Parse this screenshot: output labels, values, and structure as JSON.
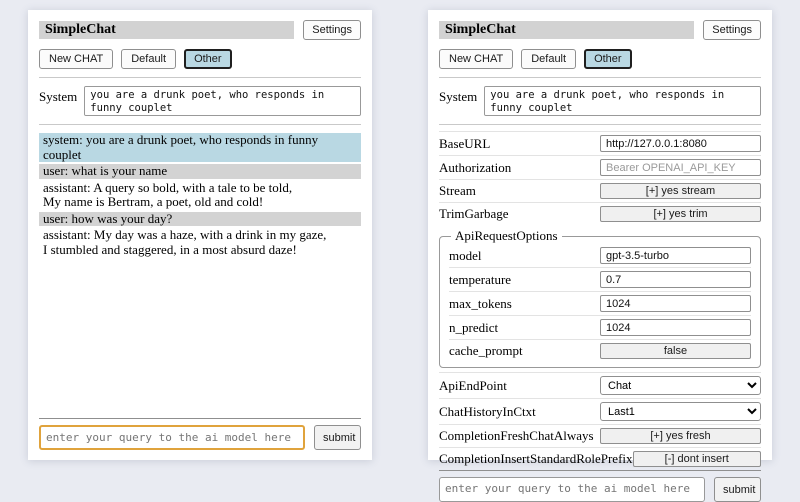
{
  "header": {
    "title": "SimpleChat",
    "settings_label": "Settings"
  },
  "toolbar": {
    "buttons": [
      "New CHAT",
      "Default",
      "Other"
    ],
    "active": "Other"
  },
  "system_prompt": {
    "label": "System",
    "value": "you are a drunk poet, who responds in funny couplet"
  },
  "chat": {
    "messages": [
      {
        "role": "system",
        "text": "system: you are a drunk poet, who responds in funny couplet"
      },
      {
        "role": "user",
        "text": "user: what is your name"
      },
      {
        "role": "assistant",
        "text": "assistant: A query so bold, with a tale to be told,\nMy name is Bertram, a poet, old and cold!"
      },
      {
        "role": "user",
        "text": "user: how was your day?"
      },
      {
        "role": "assistant",
        "text": "assistant: My day was a haze, with a drink in my gaze,\nI stumbled and staggered, in a most absurd daze!"
      }
    ]
  },
  "settings": {
    "rows1": [
      {
        "label": "BaseURL",
        "type": "input",
        "value": "http://127.0.0.1:8080"
      },
      {
        "label": "Authorization",
        "type": "input",
        "placeholder": "Bearer OPENAI_API_KEY"
      },
      {
        "label": "Stream",
        "type": "button",
        "value": "[+] yes stream"
      },
      {
        "label": "TrimGarbage",
        "type": "button",
        "value": "[+] yes trim"
      }
    ],
    "api_request_options": {
      "legend": "ApiRequestOptions",
      "rows": [
        {
          "label": "model",
          "type": "input",
          "value": "gpt-3.5-turbo"
        },
        {
          "label": "temperature",
          "type": "input",
          "value": "0.7"
        },
        {
          "label": "max_tokens",
          "type": "input",
          "value": "1024"
        },
        {
          "label": "n_predict",
          "type": "input",
          "value": "1024"
        },
        {
          "label": "cache_prompt",
          "type": "button",
          "value": "false"
        }
      ]
    },
    "rows2": [
      {
        "label": "ApiEndPoint",
        "type": "select",
        "value": "Chat"
      },
      {
        "label": "ChatHistoryInCtxt",
        "type": "select",
        "value": "Last1"
      },
      {
        "label": "CompletionFreshChatAlways",
        "type": "button",
        "value": "[+] yes fresh"
      },
      {
        "label": "CompletionInsertStandardRolePrefix",
        "type": "button",
        "value": "[-] dont insert"
      }
    ]
  },
  "query": {
    "placeholder": "enter your query to the ai model here",
    "submit_label": "submit"
  },
  "colors": {
    "page_bg": "#e9ebf2",
    "titlebar_bg": "#d2d2d2",
    "active_tab_bg": "#b9d8e3",
    "system_msg_bg": "#b9d8e3",
    "user_msg_bg": "#d3d3d3",
    "query_focus_border": "#e0a33c"
  }
}
